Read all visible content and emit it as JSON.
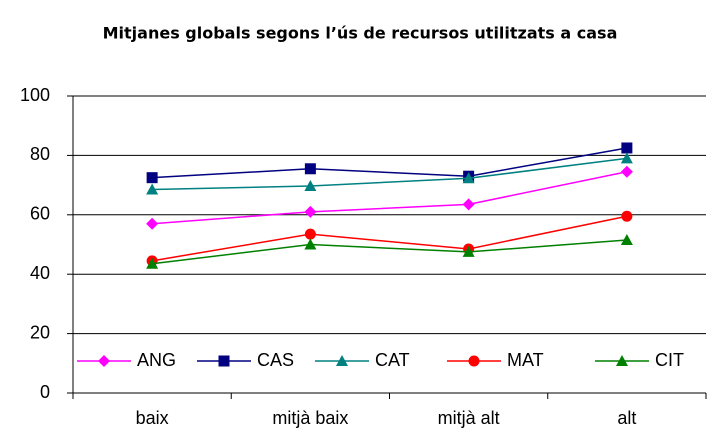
{
  "chart_data": {
    "type": "line",
    "title": "Mitjanes globals segons l’ús de recursos utilitzats a casa",
    "categories": [
      "baix",
      "mitjà baix",
      "mitjà alt",
      "alt"
    ],
    "series": [
      {
        "name": "ANG",
        "color": "#ff00ff",
        "marker": "diamond",
        "values": [
          57,
          61,
          63.5,
          74.5
        ]
      },
      {
        "name": "CAS",
        "color": "#000080",
        "marker": "square",
        "values": [
          72.5,
          75.5,
          73,
          82.5
        ]
      },
      {
        "name": "CAT",
        "color": "#008080",
        "marker": "triangle",
        "values": [
          68.5,
          69.7,
          72.3,
          79
        ]
      },
      {
        "name": "MAT",
        "color": "#ff0000",
        "marker": "circle",
        "values": [
          44.5,
          53.5,
          48.5,
          59.5
        ]
      },
      {
        "name": "CIT",
        "color": "#008000",
        "marker": "triangle",
        "values": [
          43.5,
          50,
          47.5,
          51.5
        ]
      }
    ],
    "ylim": [
      0,
      100
    ],
    "yticks": [
      0,
      20,
      40,
      60,
      80,
      100
    ],
    "grid": true,
    "legend": "bottom"
  }
}
